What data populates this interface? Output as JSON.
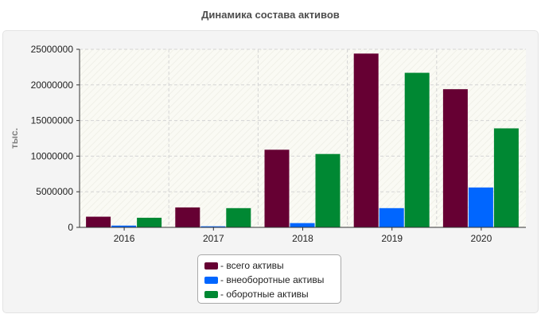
{
  "chart_data": {
    "type": "bar",
    "title": "Динамика состава активов",
    "ylabel": "тыс.",
    "xlabel": "",
    "categories": [
      "2016",
      "2017",
      "2018",
      "2019",
      "2020"
    ],
    "ylim": [
      0,
      25000000
    ],
    "yticks": [
      0,
      5000000,
      10000000,
      15000000,
      20000000,
      25000000
    ],
    "grid": true,
    "legend_position": "bottom",
    "series": [
      {
        "name": "- всего активы",
        "color": "#660033",
        "values": [
          1500000,
          2800000,
          10900000,
          24400000,
          19400000
        ]
      },
      {
        "name": "- внеоборотные активы",
        "color": "#0066ff",
        "values": [
          250000,
          150000,
          600000,
          2700000,
          5600000
        ]
      },
      {
        "name": "- оборотные активы",
        "color": "#008833",
        "values": [
          1350000,
          2700000,
          10300000,
          21700000,
          13900000
        ]
      }
    ]
  }
}
